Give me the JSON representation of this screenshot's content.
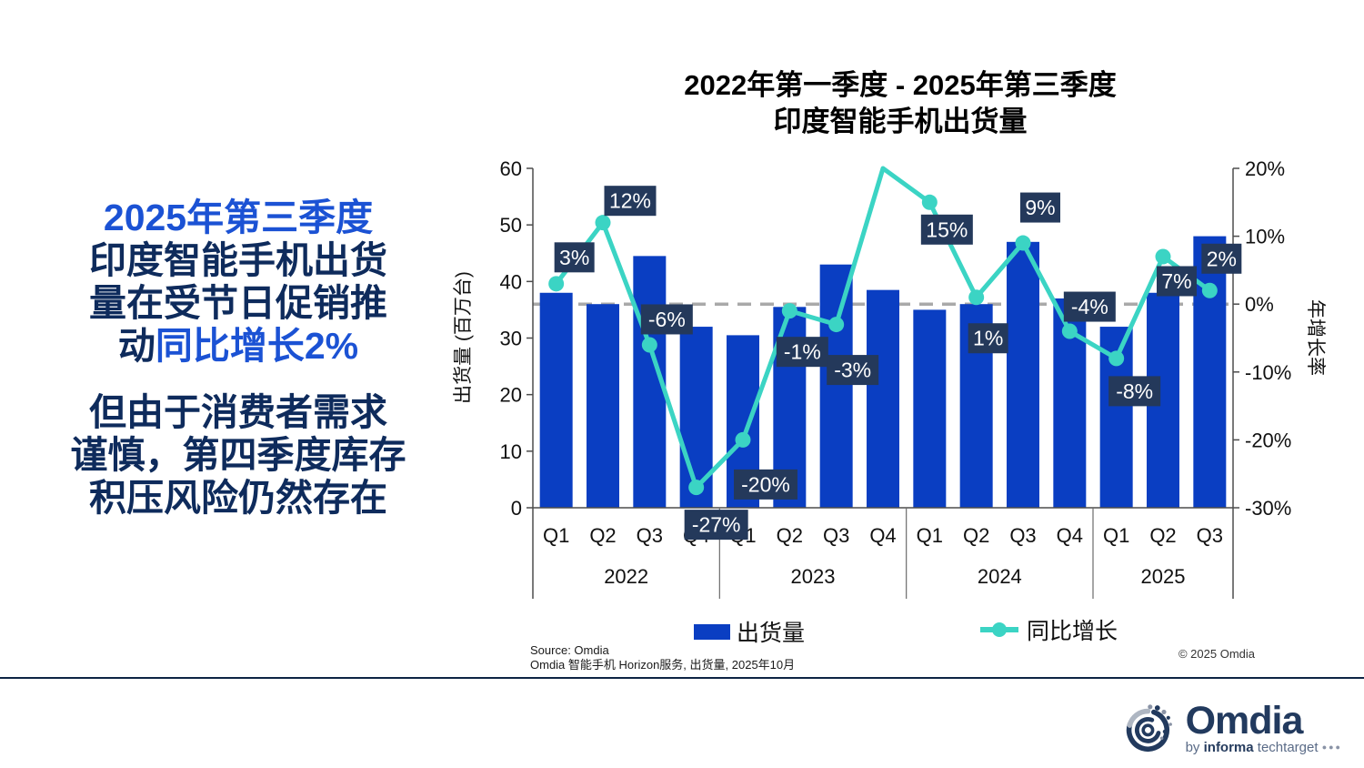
{
  "page": {
    "title_line1": "2022年第一季度 - 2025年第三季度",
    "title_line2": "印度智能手机出货量"
  },
  "left_panel": {
    "p1_seg1": "2025年第三季度",
    "p1_seg2": "印度智能手机出货",
    "p1_seg3": "量在受节日促销推",
    "p1_seg4a": "动",
    "p1_seg4b": "同比增长2%",
    "p2_line1": "但由于消费者需求",
    "p2_line2": "谨慎，第四季度库存",
    "p2_line3": "积压风险仍然存在",
    "blue_color": "#1b52d4",
    "navy_color": "#0e2b5c"
  },
  "chart_data": {
    "type": "bar",
    "subtype": "combo bar + line, dual axis",
    "title": "2022年第一季度 - 2025年第三季度 印度智能手机出货量",
    "categories": [
      "Q1",
      "Q2",
      "Q3",
      "Q4",
      "Q1",
      "Q2",
      "Q3",
      "Q4",
      "Q1",
      "Q2",
      "Q3",
      "Q4",
      "Q1",
      "Q2",
      "Q3"
    ],
    "year_groups": [
      {
        "label": "2022",
        "span": 4
      },
      {
        "label": "2023",
        "span": 4
      },
      {
        "label": "2024",
        "span": 4
      },
      {
        "label": "2025",
        "span": 3
      }
    ],
    "series": [
      {
        "name": "出货量",
        "type": "bar",
        "axis": "left",
        "color": "#0a3ec2",
        "values": [
          38,
          36,
          44.5,
          32,
          30.5,
          35.5,
          43,
          38.5,
          35,
          36,
          47,
          37,
          32,
          38,
          48
        ]
      },
      {
        "name": "同比增长",
        "type": "line",
        "axis": "right",
        "color": "#3bd4c4",
        "values": [
          3,
          12,
          -6,
          -27,
          -20,
          -1,
          -3,
          20,
          15,
          1,
          9,
          -4,
          -8,
          7,
          2
        ],
        "labels": [
          "3%",
          "12%",
          "-6%",
          "-27%",
          "-20%",
          "-1%",
          "-3%",
          null,
          "15%",
          "1%",
          "9%",
          "-4%",
          "-8%",
          "7%",
          "2%"
        ],
        "label_offsets": [
          [
            20,
            -29
          ],
          [
            30,
            -24
          ],
          [
            19,
            -28
          ],
          [
            22,
            41
          ],
          [
            25,
            49
          ],
          [
            14,
            45
          ],
          [
            18,
            50
          ],
          null,
          [
            19,
            30
          ],
          [
            13,
            45
          ],
          [
            19,
            -39
          ],
          [
            22,
            -27
          ],
          [
            20,
            36
          ],
          [
            15,
            27
          ],
          [
            13,
            -35
          ]
        ],
        "note": "2023 Q4 point is drawn clipped at the 20% axis maximum and carries no data label"
      }
    ],
    "left_axis": {
      "label": "出货量 (百万台)",
      "min": 0,
      "max": 60,
      "step": 10
    },
    "right_axis": {
      "label": "年增长率",
      "min": -30,
      "max": 20,
      "step": 10,
      "suffix": "%"
    },
    "reference_line": {
      "value_right_axis": 0,
      "style": "dashed",
      "color": "#a9a9a9"
    },
    "label_box_color": "#24395b",
    "label_text_color": "#ffffff",
    "grid": "off",
    "legend_position": "bottom"
  },
  "source": {
    "line1": "Source: Omdia",
    "line2": "Omdia 智能手机 Horizon服务, 出货量, 2025年10月"
  },
  "copyright": "© 2025 Omdia",
  "logo": {
    "wordmark": "Omdia",
    "by": "by",
    "informa": "informa",
    "techtarget": "techtarget"
  }
}
